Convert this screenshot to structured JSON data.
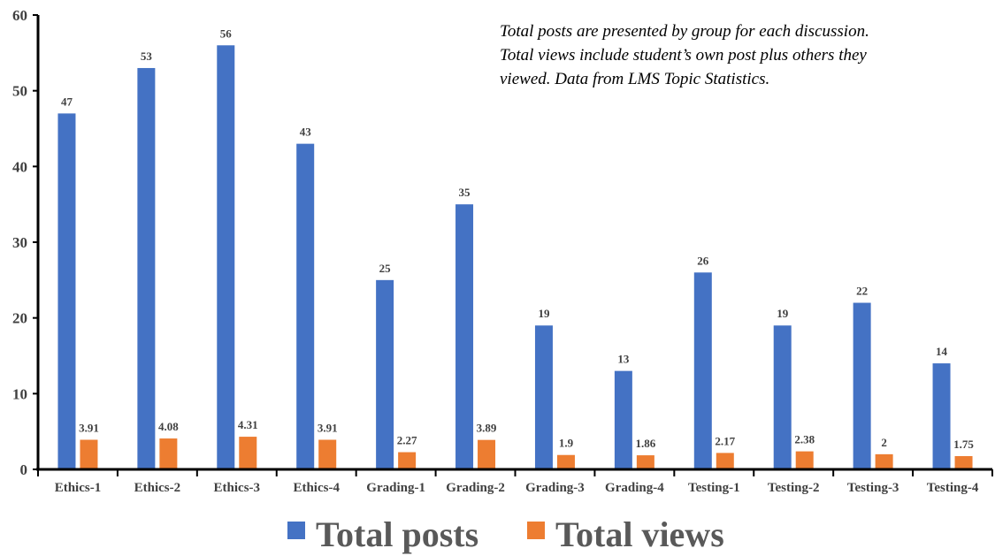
{
  "chart_data": {
    "type": "bar",
    "categories": [
      "Ethics-1",
      "Ethics-2",
      "Ethics-3",
      "Ethics-4",
      "Grading-1",
      "Grading-2",
      "Grading-3",
      "Grading-4",
      "Testing-1",
      "Testing-2",
      "Testing-3",
      "Testing-4"
    ],
    "series": [
      {
        "name": "Total posts",
        "color": "#4472C4",
        "values": [
          47,
          53,
          56,
          43,
          25,
          35,
          19,
          13,
          26,
          19,
          22,
          14
        ]
      },
      {
        "name": "Total views",
        "color": "#ED7D31",
        "values": [
          3.91,
          4.08,
          4.31,
          3.91,
          2.27,
          3.89,
          1.9,
          1.86,
          2.17,
          2.38,
          2,
          1.75
        ]
      }
    ],
    "data_labels": [
      [
        "47",
        "53",
        "56",
        "43",
        "25",
        "35",
        "19",
        "13",
        "26",
        "19",
        "22",
        "14"
      ],
      [
        "3.91",
        "4.08",
        "4.31",
        "3.91",
        "2.27",
        "3.89",
        "1.9",
        "1.86",
        "2.17",
        "2.38",
        "2",
        "1.75"
      ]
    ],
    "ylim": [
      0,
      60
    ],
    "yticks": [
      "0",
      "10",
      "20",
      "30",
      "40",
      "50",
      "60"
    ],
    "grid": false,
    "legend_position": "bottom",
    "annotation": [
      "Total posts are presented by group for each discussion.",
      "Total views include student’s own post plus others they",
      "viewed. Data from LMS Topic Statistics."
    ]
  }
}
